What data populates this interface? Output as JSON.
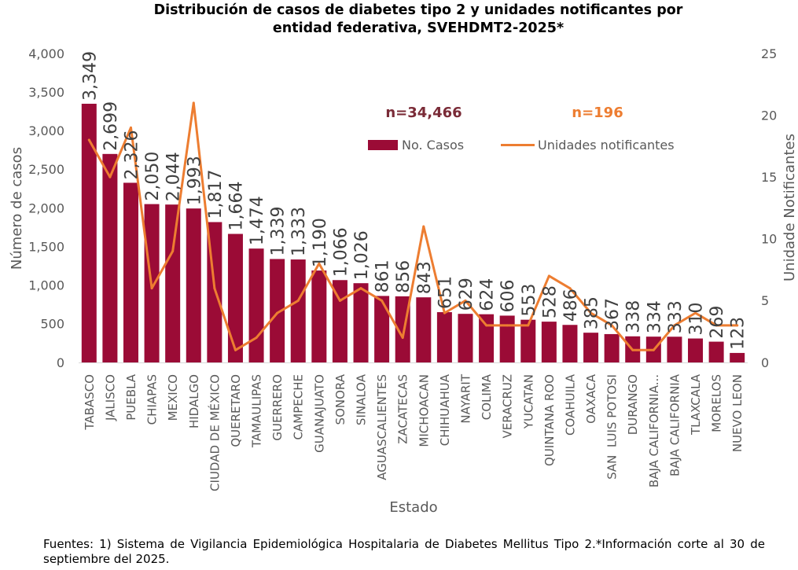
{
  "chart_data": {
    "type": "bar",
    "title": [
      "Distribución de casos de diabetes tipo 2 y unidades notificantes por",
      "entidad federativa, SVEHDMT2-2025*"
    ],
    "categories": [
      "TABASCO",
      "JALISCO",
      "PUEBLA",
      "CHIAPAS",
      "MEXICO",
      "HIDALGO",
      "CIUDAD DE MÉXICO",
      "QUERETARO",
      "TAMAULIPAS",
      "GUERRERO",
      "CAMPECHE",
      "GUANAJUATO",
      "SONORA",
      "SINALOA",
      "AGUASCALIENTES",
      "ZACATECAS",
      "MICHOACAN",
      "CHIHUAHUA",
      "NAYARIT",
      "COLIMA",
      "VERACRUZ",
      "YUCATAN",
      "QUINTANA ROO",
      "COAHUILA",
      "OAXACA",
      "SAN  LUIS POTOSI",
      "DURANGO",
      "BAJA CALIFORNIA...",
      "BAJA CALIFORNIA",
      "TLAXCALA",
      "MORELOS",
      "NUEVO LEON"
    ],
    "series": [
      {
        "name": "No. Casos",
        "type": "bar",
        "y_axis": "left",
        "color": "#9b0b36",
        "values": [
          3349,
          2699,
          2326,
          2050,
          2044,
          1993,
          1817,
          1664,
          1474,
          1339,
          1333,
          1190,
          1066,
          1026,
          861,
          856,
          843,
          651,
          629,
          624,
          606,
          553,
          528,
          486,
          385,
          367,
          338,
          334,
          333,
          310,
          269,
          123
        ],
        "value_labels": [
          "3,349",
          "2,699",
          "2,326",
          "2,050",
          "2,044",
          "1,993",
          "1,817",
          "1,664",
          "1,474",
          "1,339",
          "1,333",
          "1,190",
          "1,066",
          "1,026",
          "861",
          "856",
          "843",
          "651",
          "629",
          "624",
          "606",
          "553",
          "528",
          "486",
          "385",
          "367",
          "338",
          "334",
          "333",
          "310",
          "269",
          "123"
        ]
      },
      {
        "name": "Unidades notificantes",
        "type": "line",
        "y_axis": "right",
        "color": "#ed7d31",
        "values": [
          18,
          15,
          19,
          6,
          9,
          21,
          6,
          1,
          2,
          4,
          5,
          8,
          5,
          6,
          5,
          2,
          11,
          4,
          5,
          3,
          3,
          3,
          7,
          6,
          4,
          3,
          1,
          1,
          3,
          4,
          3,
          3
        ]
      }
    ],
    "xlabel": "Estado",
    "ylabel": "Número de casos",
    "ylabel_right": "Unidade Notificantes",
    "ylim": [
      0,
      4000
    ],
    "ylim_right": [
      0,
      25
    ],
    "yticks": [
      "0",
      "500",
      "1,000",
      "1,500",
      "2,000",
      "2,500",
      "3,000",
      "3,500",
      "4,000"
    ],
    "yticks_right": [
      "0",
      "5",
      "10",
      "15",
      "20",
      "25"
    ],
    "annotations": [
      {
        "text": "n=34,466",
        "color": "#7a2b37"
      },
      {
        "text": "n=196",
        "color": "#ed7d31"
      }
    ],
    "legend": "top-center",
    "grid": false
  },
  "footnote": "Fuentes: 1) Sistema de Vigilancia Epidemiológica Hospitalaria de Diabetes Mellitus Tipo 2.*Información corte al 30 de septiembre del 2025."
}
